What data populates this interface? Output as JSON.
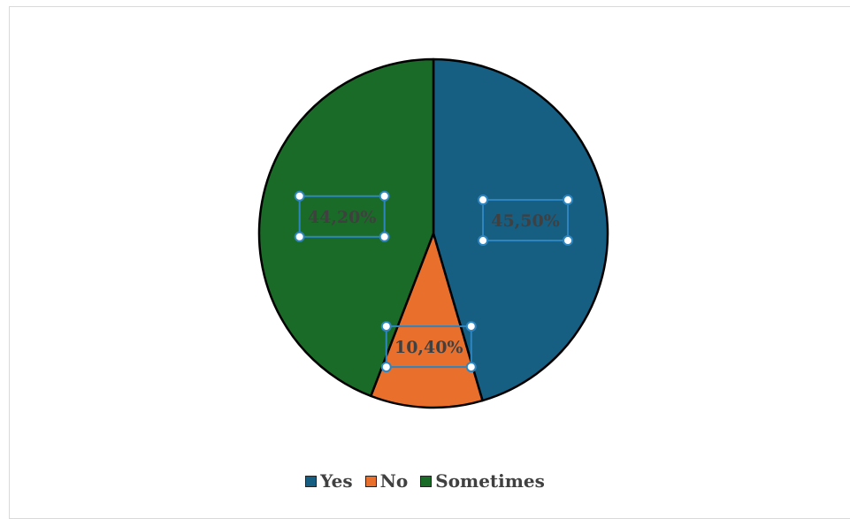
{
  "chart_data": {
    "type": "pie",
    "title": "",
    "categories": [
      "Yes",
      "No",
      "Sometimes"
    ],
    "values": [
      45.5,
      10.4,
      44.2
    ],
    "data_labels": [
      "45,50%",
      "10,40%",
      "44,20%"
    ],
    "colors": [
      "#165e82",
      "#e86f2c",
      "#1a6b27"
    ],
    "legend_position": "bottom",
    "selected_element": "data-labels"
  }
}
